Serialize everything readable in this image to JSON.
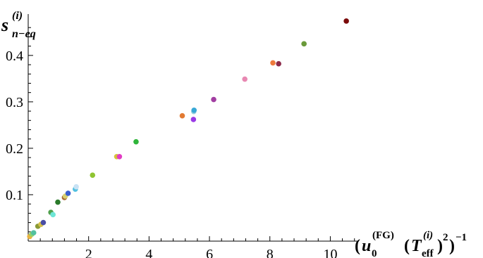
{
  "chart_data": {
    "type": "scatter",
    "title": "",
    "xlabel": {
      "u": "u",
      "u_sub": "0",
      "u_sup": "(FG)",
      "T": "T",
      "T_sub": "eff",
      "T_sup": "(i)",
      "square": "2",
      "inv": "−1"
    },
    "ylabel": {
      "s": "s",
      "sub": "n−eq",
      "sup": "(i)"
    },
    "xlim": [
      0,
      10.9
    ],
    "ylim": [
      0,
      0.48
    ],
    "xticks": [
      {
        "value": 2,
        "label": "2"
      },
      {
        "value": 4,
        "label": "4"
      },
      {
        "value": 6,
        "label": "6"
      },
      {
        "value": 8,
        "label": "8"
      },
      {
        "value": 10,
        "label": "10"
      }
    ],
    "yticks": [
      {
        "value": 0.1,
        "label": "0.1"
      },
      {
        "value": 0.2,
        "label": "0.2"
      },
      {
        "value": 0.3,
        "label": "0.3"
      },
      {
        "value": 0.4,
        "label": "0.4"
      }
    ],
    "grid": false,
    "points": [
      {
        "x": 0.05,
        "y": 0.01,
        "color": "#e8b341"
      },
      {
        "x": 0.12,
        "y": 0.015,
        "color": "#90d16a"
      },
      {
        "x": 0.18,
        "y": 0.018,
        "color": "#52c0a0"
      },
      {
        "x": 0.32,
        "y": 0.032,
        "color": "#8a9a36"
      },
      {
        "x": 0.42,
        "y": 0.036,
        "color": "#d4c04a"
      },
      {
        "x": 0.5,
        "y": 0.04,
        "color": "#4a4ea4"
      },
      {
        "x": 0.75,
        "y": 0.062,
        "color": "#4fa04c"
      },
      {
        "x": 0.82,
        "y": 0.057,
        "color": "#6ee6d6"
      },
      {
        "x": 0.98,
        "y": 0.084,
        "color": "#2a7a2a"
      },
      {
        "x": 1.2,
        "y": 0.094,
        "color": "#a86a32"
      },
      {
        "x": 1.23,
        "y": 0.097,
        "color": "#d8d070"
      },
      {
        "x": 1.32,
        "y": 0.103,
        "color": "#3a5ed0"
      },
      {
        "x": 1.56,
        "y": 0.112,
        "color": "#52c0e0"
      },
      {
        "x": 1.59,
        "y": 0.117,
        "color": "#c8e2f4"
      },
      {
        "x": 2.13,
        "y": 0.142,
        "color": "#8fc431"
      },
      {
        "x": 2.93,
        "y": 0.182,
        "color": "#d6c23a"
      },
      {
        "x": 3.02,
        "y": 0.182,
        "color": "#e23cc4"
      },
      {
        "x": 3.57,
        "y": 0.214,
        "color": "#2fb53a"
      },
      {
        "x": 5.1,
        "y": 0.27,
        "color": "#e27a32"
      },
      {
        "x": 5.47,
        "y": 0.262,
        "color": "#9a3ae6"
      },
      {
        "x": 5.48,
        "y": 0.279,
        "color": "#9ad2de"
      },
      {
        "x": 5.49,
        "y": 0.282,
        "color": "#38a8d6"
      },
      {
        "x": 6.14,
        "y": 0.305,
        "color": "#a23ea2"
      },
      {
        "x": 7.17,
        "y": 0.349,
        "color": "#e888b2"
      },
      {
        "x": 8.1,
        "y": 0.384,
        "color": "#ee7a3c"
      },
      {
        "x": 8.29,
        "y": 0.382,
        "color": "#8c2a4a"
      },
      {
        "x": 9.13,
        "y": 0.425,
        "color": "#6a9a3a"
      },
      {
        "x": 10.53,
        "y": 0.474,
        "color": "#7a0a0a"
      }
    ]
  }
}
